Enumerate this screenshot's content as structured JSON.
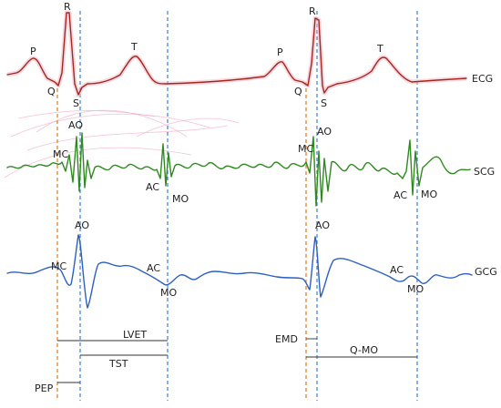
{
  "signals": {
    "ecg": "ECG",
    "scg": "SCG",
    "gcg": "GCG"
  },
  "ecg_points": {
    "p1": "P",
    "q1": "Q",
    "r1": "R",
    "s1": "S",
    "t1": "T",
    "p2": "P",
    "q2": "Q",
    "r2": "R",
    "s2": "S",
    "t2": "T"
  },
  "scg_points": {
    "mc1": "MC",
    "ao1": "AO",
    "ac1": "AC",
    "mo1": "MO",
    "mc2": "MC",
    "ao2": "AO",
    "ac2": "AC",
    "mo2": "MO"
  },
  "gcg_points": {
    "mc1": "MC",
    "ao1": "AO",
    "ac1": "AC",
    "mo1": "MO",
    "ao2": "AO",
    "ac2": "AC",
    "mo2": "MO"
  },
  "intervals": {
    "lvet": "LVET",
    "tst": "TST",
    "pep": "PEP",
    "emd": "EMD",
    "q_mo": "Q-MO"
  },
  "colors": {
    "ecg": "#a3271c",
    "scg": "#2e8a1f",
    "gcg": "#2c5fc4",
    "marker_q": "#e07a1c",
    "marker_ao_mo": "#3c7fd6"
  }
}
